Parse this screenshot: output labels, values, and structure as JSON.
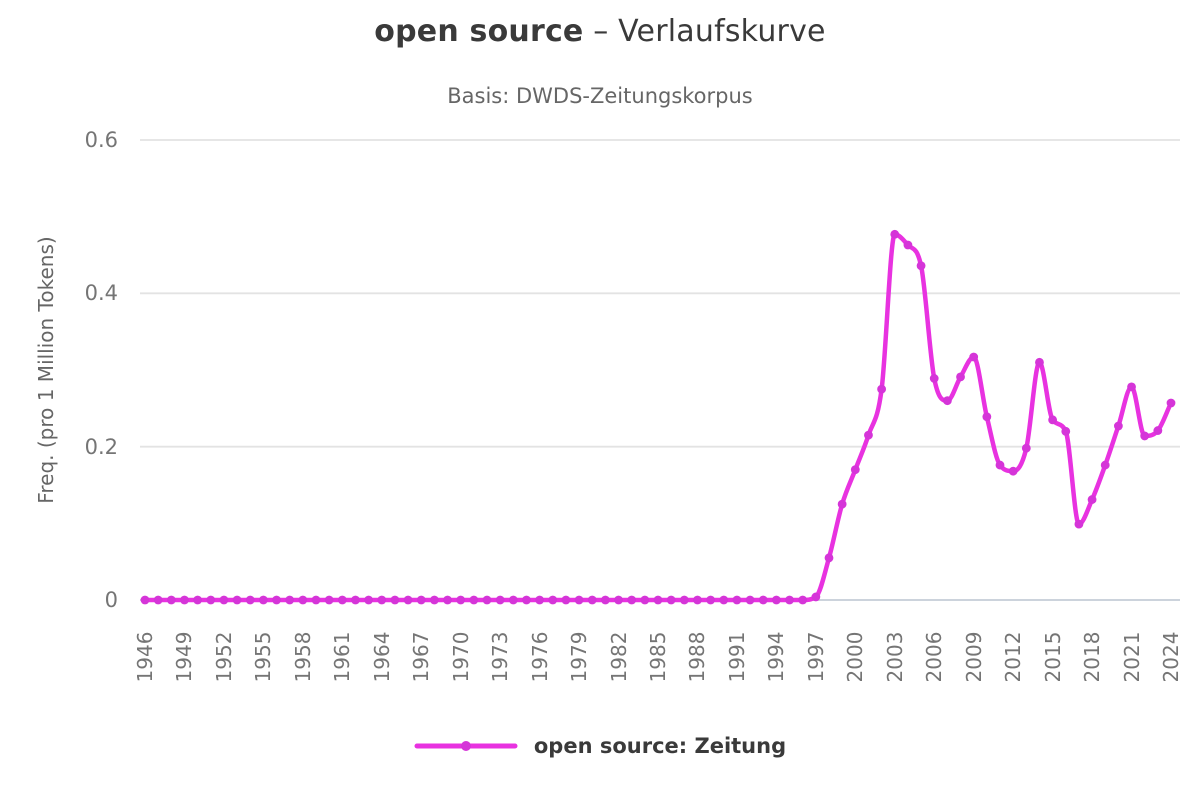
{
  "header": {
    "title_term": "open source",
    "title_rest": " – Verlaufskurve",
    "subtitle": "Basis: DWDS-Zeitungskorpus"
  },
  "legend": {
    "label": "open source: Zeitung"
  },
  "colors": {
    "series_line": "#e832e0",
    "series_marker": "#d535d8",
    "grid": "#e3e3e3",
    "baseline": "#ccd3dc",
    "title_text": "#3a3a3a",
    "subtitle_text": "#666666",
    "axis_text": "#757575",
    "background": "#ffffff"
  },
  "chart_data": {
    "type": "line",
    "title": "open source – Verlaufskurve",
    "subtitle": "Basis: DWDS-Zeitungskorpus",
    "xlabel": "",
    "ylabel": "Freq. (pro 1 Million Tokens)",
    "ylim": [
      0,
      0.6
    ],
    "x_range": [
      1946,
      2024
    ],
    "yticks": [
      0,
      0.2,
      0.4,
      0.6
    ],
    "ytick_labels": [
      "0",
      "0.2",
      "0.4",
      "0.6"
    ],
    "xtick_labels": [
      "1946",
      "1949",
      "1952",
      "1955",
      "1958",
      "1961",
      "1964",
      "1967",
      "1970",
      "1973",
      "1976",
      "1979",
      "1982",
      "1985",
      "1988",
      "1991",
      "1994",
      "1997",
      "2000",
      "2003",
      "2006",
      "2009",
      "2012",
      "2015",
      "2018",
      "2021",
      "2024"
    ],
    "grid": true,
    "legend_position": "bottom",
    "smooth": true,
    "series": [
      {
        "name": "open source: Zeitung",
        "color": "#e832e0",
        "marker_color": "#d535d8",
        "x": [
          1946,
          1947,
          1948,
          1949,
          1950,
          1951,
          1952,
          1953,
          1954,
          1955,
          1956,
          1957,
          1958,
          1959,
          1960,
          1961,
          1962,
          1963,
          1964,
          1965,
          1966,
          1967,
          1968,
          1969,
          1970,
          1971,
          1972,
          1973,
          1974,
          1975,
          1976,
          1977,
          1978,
          1979,
          1980,
          1981,
          1982,
          1983,
          1984,
          1985,
          1986,
          1987,
          1988,
          1989,
          1990,
          1991,
          1992,
          1993,
          1994,
          1995,
          1996,
          1997,
          1998,
          1999,
          2000,
          2001,
          2002,
          2003,
          2004,
          2005,
          2006,
          2007,
          2008,
          2009,
          2010,
          2011,
          2012,
          2013,
          2014,
          2015,
          2016,
          2017,
          2018,
          2019,
          2020,
          2021,
          2022,
          2023,
          2024
        ],
        "values": [
          0,
          0,
          0,
          0,
          0,
          0,
          0,
          0,
          0,
          0,
          0,
          0,
          0,
          0,
          0,
          0,
          0,
          0,
          0,
          0,
          0,
          0,
          0,
          0,
          0,
          0,
          0,
          0,
          0,
          0,
          0,
          0,
          0,
          0,
          0,
          0,
          0,
          0,
          0,
          0,
          0,
          0,
          0,
          0,
          0,
          0,
          0,
          0,
          0,
          0,
          0,
          0.004,
          0.055,
          0.125,
          0.17,
          0.215,
          0.275,
          0.477,
          0.463,
          0.436,
          0.289,
          0.26,
          0.291,
          0.317,
          0.239,
          0.176,
          0.168,
          0.198,
          0.31,
          0.235,
          0.22,
          0.099,
          0.131,
          0.176,
          0.227,
          0.278,
          0.214,
          0.221,
          0.257
        ]
      }
    ]
  }
}
